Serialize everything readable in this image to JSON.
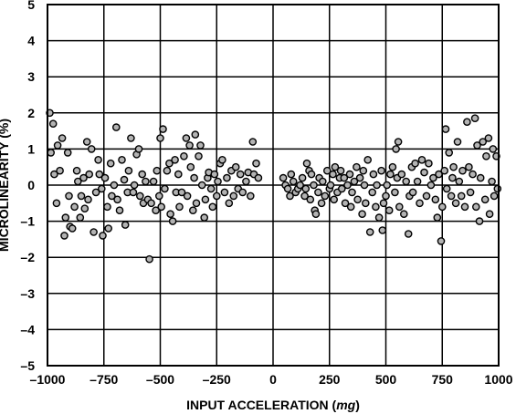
{
  "chart_data": {
    "type": "scatter",
    "xlabel_prefix": "INPUT ACCELERATION (",
    "xlabel_unit": "mg",
    "xlabel_suffix": ")",
    "ylabel": "MICROLINEARITY (%)",
    "xlim": [
      -1000,
      1000
    ],
    "ylim": [
      -5,
      5
    ],
    "xticks": [
      -1000,
      -750,
      -500,
      -250,
      0,
      250,
      500,
      750,
      1000
    ],
    "xtick_labels": [
      "–1000",
      "–750",
      "–500",
      "–250",
      "0",
      "250",
      "500",
      "750",
      "1000"
    ],
    "yticks": [
      5,
      4,
      3,
      2,
      1,
      0,
      -1,
      -2,
      -3,
      -4,
      -5
    ],
    "ytick_labels": [
      "5",
      "4",
      "3",
      "2",
      "1",
      "0",
      "–1",
      "–2",
      "–3",
      "–4",
      "–5"
    ],
    "grid": true,
    "marker": "open-circle-gray",
    "colors": {
      "grid": "#000000",
      "marker_fill": "#b3b3b3",
      "marker_edge": "#000000"
    },
    "series": [
      {
        "points": [
          [
            -990,
            2.0
          ],
          [
            -985,
            0.9
          ],
          [
            -975,
            1.7
          ],
          [
            -970,
            0.3
          ],
          [
            -960,
            -0.5
          ],
          [
            -955,
            1.1
          ],
          [
            -945,
            0.4
          ],
          [
            -935,
            1.3
          ],
          [
            -925,
            -1.4
          ],
          [
            -920,
            -0.9
          ],
          [
            -910,
            0.9
          ],
          [
            -905,
            -0.3
          ],
          [
            -900,
            -1.15
          ],
          [
            -890,
            -1.2
          ],
          [
            -880,
            -0.6
          ],
          [
            -870,
            0.4
          ],
          [
            -865,
            0.1
          ],
          [
            -855,
            -0.9
          ],
          [
            -850,
            -0.3
          ],
          [
            -840,
            0.2
          ],
          [
            -835,
            -0.65
          ],
          [
            -825,
            1.2
          ],
          [
            -820,
            -0.4
          ],
          [
            -815,
            0.3
          ],
          [
            -805,
            1.0
          ],
          [
            -795,
            -1.3
          ],
          [
            -785,
            -0.2
          ],
          [
            -775,
            0.7
          ],
          [
            -770,
            0.3
          ],
          [
            -760,
            -0.1
          ],
          [
            -755,
            -1.4
          ],
          [
            -745,
            0.2
          ],
          [
            -735,
            -0.6
          ],
          [
            -730,
            -1.2
          ],
          [
            -720,
            0.6
          ],
          [
            -715,
            -0.3
          ],
          [
            -705,
            0.0
          ],
          [
            -695,
            1.6
          ],
          [
            -690,
            -0.4
          ],
          [
            -680,
            -0.7
          ],
          [
            -670,
            0.7
          ],
          [
            -660,
            0.15
          ],
          [
            -655,
            -1.1
          ],
          [
            -645,
            -0.2
          ],
          [
            -640,
            0.4
          ],
          [
            -630,
            1.3
          ],
          [
            -620,
            -0.2
          ],
          [
            -615,
            0.0
          ],
          [
            -605,
            0.85
          ],
          [
            -595,
            1.0
          ],
          [
            -590,
            -0.3
          ],
          [
            -580,
            0.3
          ],
          [
            -575,
            -0.5
          ],
          [
            -565,
            0.1
          ],
          [
            -555,
            -0.4
          ],
          [
            -548,
            -2.05
          ],
          [
            -540,
            -0.5
          ],
          [
            -530,
            0.1
          ],
          [
            -520,
            -0.7
          ],
          [
            -515,
            0.4
          ],
          [
            -505,
            -0.3
          ],
          [
            -500,
            1.3
          ],
          [
            -495,
            -0.6
          ],
          [
            -488,
            1.55
          ],
          [
            -480,
            -0.1
          ],
          [
            -470,
            0.4
          ],
          [
            -460,
            0.6
          ],
          [
            -455,
            -0.8
          ],
          [
            -445,
            -1.0
          ],
          [
            -435,
            0.7
          ],
          [
            -430,
            -0.2
          ],
          [
            -420,
            0.3
          ],
          [
            -415,
            -0.6
          ],
          [
            -405,
            -0.2
          ],
          [
            -395,
            0.8
          ],
          [
            -385,
            1.3
          ],
          [
            -380,
            -0.3
          ],
          [
            -370,
            1.1
          ],
          [
            -365,
            0.5
          ],
          [
            -355,
            -0.7
          ],
          [
            -350,
            0.2
          ],
          [
            -345,
            1.4
          ],
          [
            -340,
            -0.5
          ],
          [
            -330,
            0.8
          ],
          [
            -322,
            1.1
          ],
          [
            -315,
            0.0
          ],
          [
            -305,
            -0.9
          ],
          [
            -300,
            -0.4
          ],
          [
            -290,
            0.2
          ],
          [
            -285,
            0.35
          ],
          [
            -275,
            -0.1
          ],
          [
            -268,
            -0.6
          ],
          [
            -260,
            0.3
          ],
          [
            -250,
            -0.3
          ],
          [
            -245,
            0.1
          ],
          [
            -235,
            0.6
          ],
          [
            -225,
            0.7
          ],
          [
            -215,
            -0.2
          ],
          [
            -205,
            0.2
          ],
          [
            -195,
            -0.5
          ],
          [
            -185,
            0.4
          ],
          [
            -175,
            -0.3
          ],
          [
            -165,
            0.5
          ],
          [
            -155,
            -0.1
          ],
          [
            -145,
            0.3
          ],
          [
            -135,
            -0.2
          ],
          [
            -120,
            0.1
          ],
          [
            -110,
            0.35
          ],
          [
            -100,
            -0.3
          ],
          [
            -90,
            1.2
          ],
          [
            -85,
            0.3
          ],
          [
            -75,
            0.6
          ],
          [
            -65,
            0.2
          ],
          [
            45,
            0.2
          ],
          [
            55,
            0.0
          ],
          [
            65,
            -0.1
          ],
          [
            75,
            -0.3
          ],
          [
            80,
            0.3
          ],
          [
            90,
            0.1
          ],
          [
            100,
            -0.2
          ],
          [
            110,
            -0.1
          ],
          [
            120,
            0.0
          ],
          [
            130,
            0.2
          ],
          [
            140,
            -0.3
          ],
          [
            145,
            -0.1
          ],
          [
            150,
            0.6
          ],
          [
            160,
            0.4
          ],
          [
            165,
            -0.4
          ],
          [
            170,
            0.3
          ],
          [
            180,
            0.0
          ],
          [
            185,
            -0.7
          ],
          [
            190,
            -0.8
          ],
          [
            200,
            -0.2
          ],
          [
            205,
            0.2
          ],
          [
            215,
            -0.5
          ],
          [
            220,
            0.1
          ],
          [
            230,
            -0.3
          ],
          [
            240,
            0.4
          ],
          [
            250,
            -0.1
          ],
          [
            255,
            0.0
          ],
          [
            265,
            0.3
          ],
          [
            270,
            -0.4
          ],
          [
            275,
            0.5
          ],
          [
            285,
            -0.2
          ],
          [
            295,
            0.2
          ],
          [
            300,
            0.4
          ],
          [
            305,
            -0.1
          ],
          [
            315,
            0.2
          ],
          [
            320,
            -0.5
          ],
          [
            330,
            0.0
          ],
          [
            340,
            0.3
          ],
          [
            345,
            -0.6
          ],
          [
            350,
            -0.2
          ],
          [
            360,
            0.1
          ],
          [
            370,
            0.5
          ],
          [
            375,
            -0.4
          ],
          [
            385,
            0.2
          ],
          [
            395,
            -0.8
          ],
          [
            400,
            0.4
          ],
          [
            405,
            0.0
          ],
          [
            410,
            -0.5
          ],
          [
            420,
            0.7
          ],
          [
            430,
            -1.3
          ],
          [
            440,
            -0.2
          ],
          [
            445,
            0.3
          ],
          [
            455,
            -0.6
          ],
          [
            460,
            0.0
          ],
          [
            470,
            -0.9
          ],
          [
            480,
            0.4
          ],
          [
            485,
            -1.25
          ],
          [
            490,
            -0.5
          ],
          [
            500,
            -0.3
          ],
          [
            505,
            0.0
          ],
          [
            515,
            -0.7
          ],
          [
            520,
            0.3
          ],
          [
            530,
            0.5
          ],
          [
            540,
            -0.2
          ],
          [
            545,
            1.0
          ],
          [
            550,
            0.2
          ],
          [
            555,
            1.2
          ],
          [
            560,
            -0.6
          ],
          [
            570,
            0.3
          ],
          [
            580,
            -0.8
          ],
          [
            590,
            0.1
          ],
          [
            600,
            -1.35
          ],
          [
            605,
            -0.3
          ],
          [
            615,
            0.5
          ],
          [
            620,
            -0.2
          ],
          [
            630,
            0.6
          ],
          [
            640,
            0.1
          ],
          [
            650,
            -0.5
          ],
          [
            660,
            0.7
          ],
          [
            670,
            0.35
          ],
          [
            680,
            -0.3
          ],
          [
            690,
            0.6
          ],
          [
            700,
            0.0
          ],
          [
            710,
            0.2
          ],
          [
            720,
            -0.4
          ],
          [
            728,
            -0.9
          ],
          [
            735,
            0.3
          ],
          [
            745,
            -1.55
          ],
          [
            750,
            -0.6
          ],
          [
            760,
            0.4
          ],
          [
            765,
            1.55
          ],
          [
            770,
            -0.1
          ],
          [
            780,
            0.9
          ],
          [
            790,
            -0.3
          ],
          [
            795,
            0.2
          ],
          [
            800,
            0.5
          ],
          [
            810,
            -0.5
          ],
          [
            818,
            1.2
          ],
          [
            825,
            0.1
          ],
          [
            835,
            -0.3
          ],
          [
            840,
            0.4
          ],
          [
            850,
            -0.6
          ],
          [
            860,
            1.75
          ],
          [
            868,
            0.5
          ],
          [
            875,
            -0.2
          ],
          [
            885,
            0.3
          ],
          [
            895,
            1.85
          ],
          [
            900,
            -0.6
          ],
          [
            905,
            1.1
          ],
          [
            915,
            -1.0
          ],
          [
            920,
            0.2
          ],
          [
            930,
            1.2
          ],
          [
            940,
            -0.4
          ],
          [
            945,
            0.8
          ],
          [
            955,
            1.3
          ],
          [
            960,
            -0.8
          ],
          [
            970,
            0.1
          ],
          [
            975,
            1.0
          ],
          [
            980,
            -0.3
          ],
          [
            990,
            0.8
          ],
          [
            995,
            -0.1
          ]
        ]
      }
    ]
  }
}
